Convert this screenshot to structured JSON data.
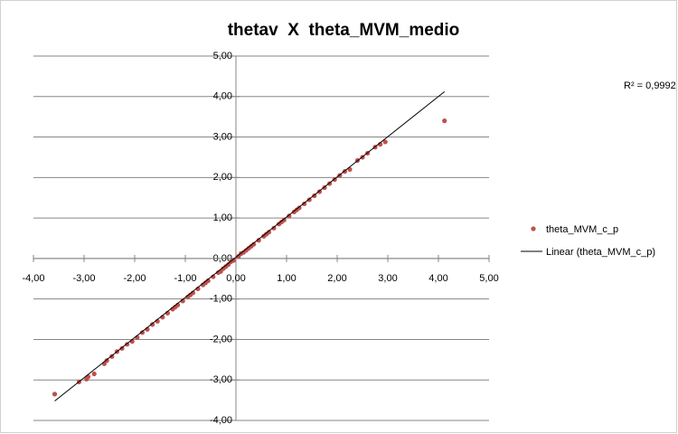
{
  "chart_data": {
    "type": "scatter",
    "title": "thetav  X  theta_MVM_medio",
    "r_squared_label": "R² = 0,9992",
    "xlim": [
      -4,
      5
    ],
    "ylim": [
      -4,
      5
    ],
    "xticks": [
      {
        "value": -4,
        "label": "-4,00"
      },
      {
        "value": -3,
        "label": "-3,00"
      },
      {
        "value": -2,
        "label": "-2,00"
      },
      {
        "value": -1,
        "label": "-1,00"
      },
      {
        "value": 0,
        "label": "0,00"
      },
      {
        "value": 1,
        "label": "1,00"
      },
      {
        "value": 2,
        "label": "2,00"
      },
      {
        "value": 3,
        "label": "3,00"
      },
      {
        "value": 4,
        "label": "4,00"
      },
      {
        "value": 5,
        "label": "5,00"
      }
    ],
    "yticks": [
      {
        "value": -4,
        "label": "-4,00"
      },
      {
        "value": -3,
        "label": "-3,00"
      },
      {
        "value": -2,
        "label": "-2,00"
      },
      {
        "value": -1,
        "label": "-1,00"
      },
      {
        "value": 0,
        "label": "0,00"
      },
      {
        "value": 1,
        "label": "1,00"
      },
      {
        "value": 2,
        "label": "2,00"
      },
      {
        "value": 3,
        "label": "3,00"
      },
      {
        "value": 4,
        "label": "4,00"
      },
      {
        "value": 5,
        "label": "5,00"
      }
    ],
    "grid": true,
    "series": [
      {
        "name": "theta_MVM_c_p",
        "color": "#c0504d",
        "x": [
          -3.58,
          -3.1,
          -2.95,
          -2.92,
          -2.8,
          -2.6,
          -2.55,
          -2.45,
          -2.35,
          -2.25,
          -2.15,
          -2.05,
          -1.95,
          -1.85,
          -1.75,
          -1.65,
          -1.55,
          -1.45,
          -1.35,
          -1.25,
          -1.2,
          -1.15,
          -1.05,
          -0.95,
          -0.9,
          -0.85,
          -0.75,
          -0.65,
          -0.6,
          -0.55,
          -0.45,
          -0.35,
          -0.3,
          -0.25,
          -0.2,
          -0.15,
          -0.1,
          -0.05,
          0.05,
          0.1,
          0.15,
          0.2,
          0.25,
          0.3,
          0.35,
          0.45,
          0.55,
          0.6,
          0.65,
          0.75,
          0.85,
          0.9,
          0.95,
          1.05,
          1.15,
          1.2,
          1.25,
          1.35,
          1.45,
          1.55,
          1.65,
          1.75,
          1.85,
          1.95,
          2.05,
          2.15,
          2.25,
          2.4,
          2.5,
          2.6,
          2.75,
          2.85,
          2.95,
          4.12
        ],
        "values": [
          -3.35,
          -3.05,
          -2.98,
          -2.92,
          -2.85,
          -2.6,
          -2.52,
          -2.42,
          -2.3,
          -2.22,
          -2.12,
          -2.05,
          -1.95,
          -1.83,
          -1.75,
          -1.63,
          -1.55,
          -1.45,
          -1.35,
          -1.25,
          -1.2,
          -1.15,
          -1.05,
          -0.95,
          -0.9,
          -0.85,
          -0.75,
          -0.65,
          -0.6,
          -0.55,
          -0.45,
          -0.35,
          -0.32,
          -0.25,
          -0.2,
          -0.15,
          -0.08,
          -0.05,
          0.05,
          0.12,
          0.15,
          0.2,
          0.25,
          0.3,
          0.35,
          0.45,
          0.55,
          0.6,
          0.65,
          0.75,
          0.85,
          0.9,
          0.95,
          1.05,
          1.15,
          1.2,
          1.25,
          1.35,
          1.45,
          1.55,
          1.65,
          1.75,
          1.85,
          1.95,
          2.05,
          2.15,
          2.2,
          2.42,
          2.5,
          2.6,
          2.75,
          2.82,
          2.88,
          3.4
        ]
      }
    ],
    "trendline": {
      "name": "Linear (theta_MVM_c_p)",
      "color": "#000000",
      "x": [
        -3.58,
        4.12
      ],
      "values": [
        -3.52,
        4.12
      ]
    }
  }
}
